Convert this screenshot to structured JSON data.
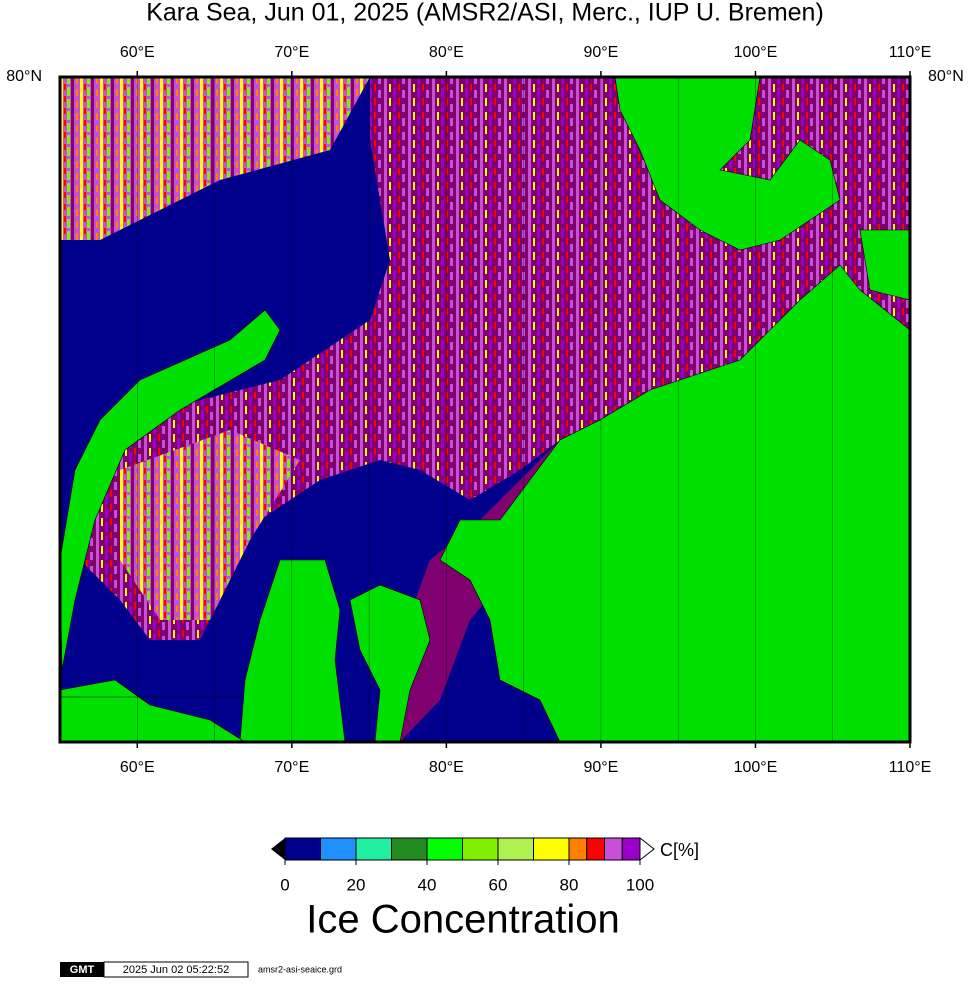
{
  "title": "Kara Sea, Jun 01, 2025 (AMSR2/ASI, Merc., IUP U. Bremen)",
  "map": {
    "lonlim": [
      55,
      110
    ],
    "lonticks": [
      {
        "value": 60,
        "label": "60°E"
      },
      {
        "value": 70,
        "label": "70°E"
      },
      {
        "value": 80,
        "label": "80°E"
      },
      {
        "value": 90,
        "label": "90°E"
      },
      {
        "value": 100,
        "label": "100°E"
      },
      {
        "value": 110,
        "label": "110°E"
      }
    ],
    "lon_grid": [
      60,
      65,
      70,
      75,
      80,
      85,
      90,
      95,
      100,
      105
    ],
    "latticks": [
      {
        "value": 80,
        "label": "80°N"
      }
    ]
  },
  "colorbar": {
    "unit_label": "C[%]",
    "title": "Ice Concentration",
    "lim": [
      0,
      100
    ],
    "ticks": [
      0,
      20,
      40,
      60,
      80,
      100
    ],
    "levels": [
      0,
      10,
      20,
      30,
      40,
      50,
      60,
      70,
      80,
      85,
      90,
      95,
      100
    ],
    "colors": [
      "#00008c",
      "#1e90ff",
      "#20f0a0",
      "#228b22",
      "#00ff00",
      "#80f000",
      "#b0f050",
      "#ffff00",
      "#ff8000",
      "#ff0000",
      "#c850d8",
      "#9a00c8"
    ]
  },
  "footer": {
    "logo": "GMT",
    "timestamp": "2025 Jun 02 05:22:52",
    "file": "amsr2-asi-seaice.grd"
  }
}
